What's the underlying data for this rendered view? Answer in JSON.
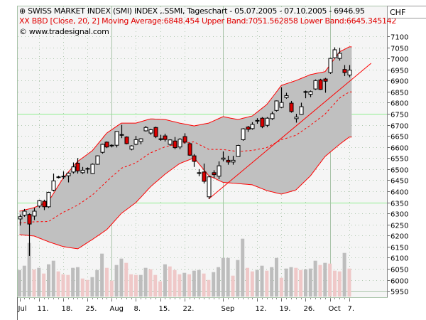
{
  "header": {
    "title": "SWISS MARKET INDEX (SMI) INDEX ,.SSMI, Tageschart - 05.07.2005 - 07.10.2005 - 6946.95",
    "indicator": "BBD [Close, 20, 2] Moving Average:6848.454 Upper Band:7051.562858 Lower Band:6645.345142",
    "indicator_icon": "XX",
    "copyright": "© www.tradesignal.com",
    "currency": "CHF"
  },
  "colors": {
    "up": "#ffffff",
    "down": "#dd0000",
    "band": "#c0c0c0",
    "bandline": "#ff0000",
    "vol_up": "#bdbdbd",
    "vol_down": "#efc8c8",
    "grid": "#a9c4a9",
    "highlight": "#90ee90"
  },
  "chart_data": {
    "type": "candlestick",
    "title": "SWISS MARKET INDEX (SMI) INDEX ,.SSMI, Tageschart",
    "ylim": [
      5925,
      7125
    ],
    "y_ticks": [
      "7100",
      "7050",
      "7000",
      "6950",
      "6900",
      "6850",
      "6800",
      "6750",
      "6700",
      "6650",
      "6600",
      "6550",
      "6500",
      "6450",
      "6400",
      "6350",
      "6300",
      "6250",
      "6200",
      "6150",
      "6100",
      "6050",
      "6000",
      "5950"
    ],
    "x_labels": [
      {
        "i": 0,
        "label": "Jul"
      },
      {
        "i": 4,
        "label": "11."
      },
      {
        "i": 9,
        "label": "18."
      },
      {
        "i": 14,
        "label": "25."
      },
      {
        "i": 19,
        "label": "Aug"
      },
      {
        "i": 24,
        "label": "8."
      },
      {
        "i": 29,
        "label": "15."
      },
      {
        "i": 34,
        "label": "22."
      },
      {
        "i": 42,
        "label": "Sep"
      },
      {
        "i": 49,
        "label": "12."
      },
      {
        "i": 54,
        "label": "19."
      },
      {
        "i": 59,
        "label": "26."
      },
      {
        "i": 64,
        "label": "Oct"
      },
      {
        "i": 68,
        "label": "7."
      }
    ],
    "month_starts": [
      19,
      42,
      64
    ],
    "ohlc": [
      [
        6275,
        6295,
        6245,
        6285
      ],
      [
        6292,
        6320,
        6285,
        6310
      ],
      [
        6295,
        6300,
        6108,
        6252
      ],
      [
        6288,
        6325,
        6270,
        6310
      ],
      [
        6333,
        6362,
        6325,
        6358
      ],
      [
        6355,
        6362,
        6315,
        6330
      ],
      [
        6330,
        6398,
        6325,
        6395
      ],
      [
        6405,
        6480,
        6400,
        6447
      ],
      [
        6465,
        6470,
        6458,
        6465
      ],
      [
        6466,
        6490,
        6455,
        6468
      ],
      [
        6470,
        6485,
        6440,
        6482
      ],
      [
        6487,
        6530,
        6480,
        6510
      ],
      [
        6527,
        6550,
        6480,
        6492
      ],
      [
        6484,
        6510,
        6478,
        6495
      ],
      [
        6503,
        6508,
        6480,
        6503
      ],
      [
        6480,
        6526,
        6478,
        6522
      ],
      [
        6522,
        6562,
        6520,
        6560
      ],
      [
        6576,
        6615,
        6570,
        6612
      ],
      [
        6622,
        6625,
        6595,
        6600
      ],
      [
        6606,
        6612,
        6598,
        6608
      ],
      [
        6608,
        6672,
        6598,
        6670
      ],
      [
        6656,
        6700,
        6640,
        6656
      ],
      [
        6645,
        6648,
        6612,
        6615
      ],
      [
        6590,
        6608,
        6585,
        6605
      ],
      [
        6612,
        6650,
        6608,
        6633
      ],
      [
        6625,
        6640,
        6612,
        6637
      ],
      [
        6673,
        6695,
        6670,
        6688
      ],
      [
        6663,
        6682,
        6655,
        6678
      ],
      [
        6688,
        6692,
        6640,
        6647
      ],
      [
        6637,
        6655,
        6628,
        6637
      ],
      [
        6650,
        6660,
        6625,
        6634
      ],
      [
        6612,
        6635,
        6605,
        6632
      ],
      [
        6627,
        6645,
        6590,
        6597
      ],
      [
        6600,
        6640,
        6590,
        6635
      ],
      [
        6647,
        6662,
        6615,
        6622
      ],
      [
        6615,
        6620,
        6560,
        6563
      ],
      [
        6560,
        6568,
        6510,
        6535
      ],
      [
        6484,
        6500,
        6468,
        6484
      ],
      [
        6487,
        6525,
        6435,
        6445
      ],
      [
        6375,
        6470,
        6365,
        6465
      ],
      [
        6484,
        6495,
        6460,
        6475
      ],
      [
        6468,
        6535,
        6455,
        6515
      ],
      [
        6545,
        6580,
        6535,
        6550
      ],
      [
        6540,
        6560,
        6520,
        6532
      ],
      [
        6532,
        6560,
        6520,
        6540
      ],
      [
        6557,
        6610,
        6555,
        6607
      ],
      [
        6633,
        6685,
        6628,
        6682
      ],
      [
        6690,
        6695,
        6668,
        6680
      ],
      [
        6683,
        6712,
        6678,
        6702
      ],
      [
        6720,
        6730,
        6705,
        6720
      ],
      [
        6730,
        6735,
        6685,
        6692
      ],
      [
        6698,
        6735,
        6690,
        6730
      ],
      [
        6728,
        6760,
        6722,
        6750
      ],
      [
        6765,
        6810,
        6760,
        6808
      ],
      [
        6779,
        6870,
        6775,
        6801
      ],
      [
        6823,
        6845,
        6818,
        6832
      ],
      [
        6798,
        6808,
        6755,
        6760
      ],
      [
        6728,
        6750,
        6710,
        6735
      ],
      [
        6747,
        6800,
        6745,
        6782
      ],
      [
        6850,
        6855,
        6820,
        6850
      ],
      [
        6838,
        6855,
        6825,
        6850
      ],
      [
        6862,
        6905,
        6858,
        6900
      ],
      [
        6903,
        6908,
        6858,
        6860
      ],
      [
        6907,
        6912,
        6845,
        6897
      ],
      [
        6936,
        7003,
        6930,
        7000
      ],
      [
        7003,
        7050,
        7000,
        7039
      ],
      [
        7000,
        7048,
        6990,
        7023
      ],
      [
        6950,
        6970,
        6920,
        6936
      ],
      [
        6925,
        6970,
        6915,
        6947
      ]
    ],
    "bollinger": {
      "period": 20,
      "deviations": 2,
      "sample_index": [
        0,
        3,
        6,
        9,
        12,
        15,
        18,
        21,
        24,
        27,
        30,
        33,
        36,
        39,
        42,
        45,
        48,
        51,
        54,
        57,
        60,
        63,
        66,
        68
      ],
      "upper": [
        6310,
        6326,
        6355,
        6460,
        6535,
        6583,
        6663,
        6708,
        6708,
        6727,
        6724,
        6708,
        6695,
        6708,
        6737,
        6724,
        6740,
        6792,
        6878,
        6900,
        6927,
        6940,
        7030,
        7052
      ],
      "lower": [
        6204,
        6198,
        6172,
        6150,
        6140,
        6182,
        6227,
        6300,
        6349,
        6420,
        6477,
        6525,
        6551,
        6471,
        6440,
        6435,
        6429,
        6403,
        6387,
        6406,
        6470,
        6557,
        6612,
        6645
      ]
    },
    "trendline": {
      "from": {
        "i": 39,
        "price": 6365
      },
      "to": {
        "i": 72.5,
        "price": 6978
      }
    },
    "volume_relative": [
      112,
      130,
      226,
      114,
      121,
      97,
      136,
      151,
      106,
      94,
      91,
      121,
      124,
      76,
      70,
      82,
      112,
      181,
      121,
      67,
      133,
      160,
      142,
      94,
      91,
      91,
      121,
      115,
      91,
      64,
      136,
      127,
      112,
      94,
      100,
      94,
      109,
      112,
      97,
      70,
      103,
      124,
      163,
      163,
      88,
      154,
      244,
      121,
      106,
      112,
      130,
      109,
      124,
      163,
      79,
      118,
      124,
      121,
      112,
      115,
      118,
      151,
      133,
      142,
      139,
      109,
      106,
      184,
      118
    ],
    "volume_up": [
      1,
      1,
      1,
      0,
      1,
      0,
      1,
      1,
      0,
      0,
      0,
      1,
      1,
      0,
      0,
      1,
      1,
      1,
      0,
      0,
      1,
      1,
      0,
      0,
      0,
      1,
      1,
      0,
      0,
      0,
      1,
      0,
      0,
      0,
      1,
      0,
      1,
      1,
      0,
      0,
      1,
      1,
      1,
      1,
      0,
      1,
      1,
      0,
      0,
      1,
      1,
      0,
      1,
      1,
      0,
      1,
      1,
      0,
      0,
      1,
      1,
      1,
      0,
      1,
      0,
      0,
      0,
      1,
      0
    ]
  }
}
